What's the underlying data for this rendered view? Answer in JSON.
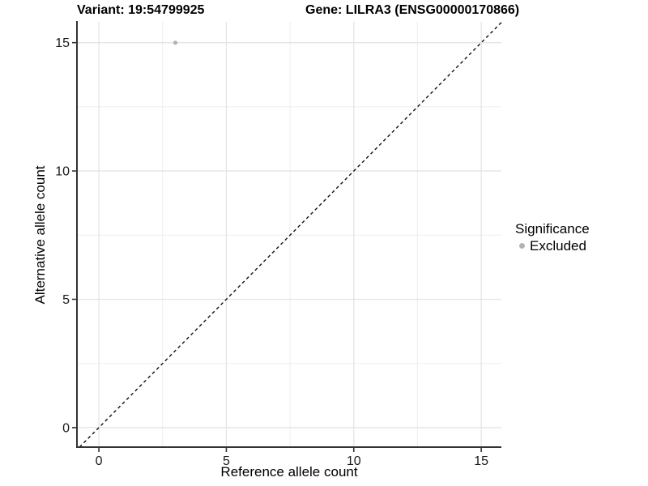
{
  "figure": {
    "title_left": "Variant: 19:54799925",
    "title_right": "Gene: LILRA3 (ENSG00000170866)"
  },
  "chart_data": {
    "type": "scatter",
    "title": "Variant: 19:54799925   |   Gene: LILRA3 (ENSG00000170866)",
    "xlabel": "Reference allele count",
    "ylabel": "Alternative allele count",
    "xlim": [
      -0.86,
      15.79
    ],
    "ylim": [
      -0.76,
      15.81
    ],
    "x_ticks": [
      0,
      5,
      10,
      15
    ],
    "y_ticks": [
      0,
      5,
      10,
      15
    ],
    "x_minor_ticks": [
      2.5,
      7.5,
      12.5
    ],
    "y_minor_ticks": [
      2.5,
      7.5,
      12.5
    ],
    "grid": "major and minor gridlines on white panel",
    "series": [
      {
        "name": "Excluded",
        "marker": "circle",
        "color": "#b3b3b3",
        "points": [
          {
            "x": 3,
            "y": 15
          }
        ]
      }
    ],
    "reference_line": {
      "style": "dashed",
      "color": "#111111",
      "x1": -0.76,
      "y1": -0.76,
      "x2": 15.81,
      "y2": 15.81
    },
    "legend": {
      "title": "Significance",
      "position": "right",
      "entries": [
        {
          "label": "Excluded",
          "color": "#b3b3b3"
        }
      ]
    }
  },
  "colors": {
    "background": "#ffffff",
    "grid_major": "#e4e4e4",
    "grid_minor": "#eeeeee",
    "axis_line": "#333333",
    "tick_mark": "#333333",
    "tick_text": "#1a1a1a",
    "title_text": "#000000"
  }
}
